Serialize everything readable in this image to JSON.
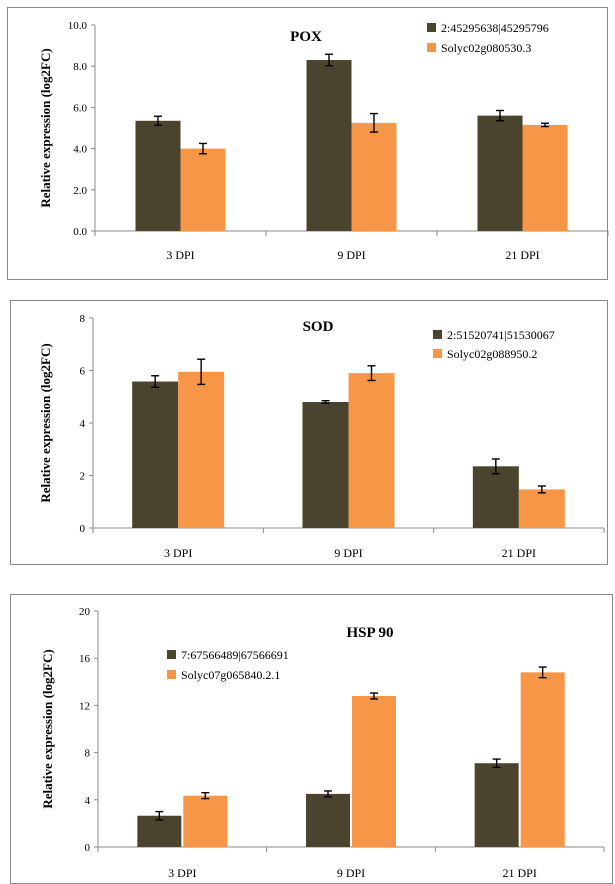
{
  "colors": {
    "series1": "#4a432e",
    "series2": "#f79646",
    "axis": "#888888",
    "frame": "#8a8a8a",
    "text": "#000000"
  },
  "chart_data": [
    {
      "type": "bar",
      "title": "POX",
      "ylabel": "Relative expression (log2FC)",
      "xlabel": "",
      "categories": [
        "3 DPI",
        "9 DPI",
        "21 DPI"
      ],
      "ylim": [
        0,
        10
      ],
      "yticks": [
        "0.0",
        "2.0",
        "4.0",
        "6.0",
        "8.0",
        "10.0"
      ],
      "legend_position": "top-right",
      "series": [
        {
          "name": "2:45295638|45295796",
          "values": [
            5.35,
            8.3,
            5.6
          ],
          "errors": [
            0.22,
            0.28,
            0.25
          ]
        },
        {
          "name": "Solyc02g080530.3",
          "values": [
            4.0,
            5.25,
            5.15
          ],
          "errors": [
            0.25,
            0.45,
            0.08
          ]
        }
      ]
    },
    {
      "type": "bar",
      "title": "SOD",
      "ylabel": "Relative expression (log2FC)",
      "xlabel": "",
      "categories": [
        "3 DPI",
        "9 DPI",
        "21 DPI"
      ],
      "ylim": [
        0,
        8
      ],
      "yticks": [
        "0",
        "2",
        "4",
        "6",
        "8"
      ],
      "legend_position": "top-right",
      "series": [
        {
          "name": "2:51520741|51530067",
          "values": [
            5.58,
            4.8,
            2.35
          ],
          "errors": [
            0.22,
            0.05,
            0.28
          ]
        },
        {
          "name": "Solyc02g088950.2",
          "values": [
            5.95,
            5.9,
            1.47
          ],
          "errors": [
            0.48,
            0.28,
            0.13
          ]
        }
      ]
    },
    {
      "type": "bar",
      "title": "HSP 90",
      "ylabel": "Relative expression (log2FC)",
      "xlabel": "",
      "categories": [
        "3 DPI",
        "9 DPI",
        "21 DPI"
      ],
      "ylim": [
        0,
        20
      ],
      "yticks": [
        "0",
        "4",
        "8",
        "12",
        "16",
        "20"
      ],
      "legend_position": "top-left",
      "series": [
        {
          "name": "7:67566489|67566691",
          "values": [
            2.65,
            4.5,
            7.1
          ],
          "errors": [
            0.35,
            0.25,
            0.35
          ]
        },
        {
          "name": "Solyc07g065840.2.1",
          "values": [
            4.35,
            12.8,
            14.8
          ],
          "errors": [
            0.25,
            0.25,
            0.45
          ]
        }
      ]
    }
  ]
}
